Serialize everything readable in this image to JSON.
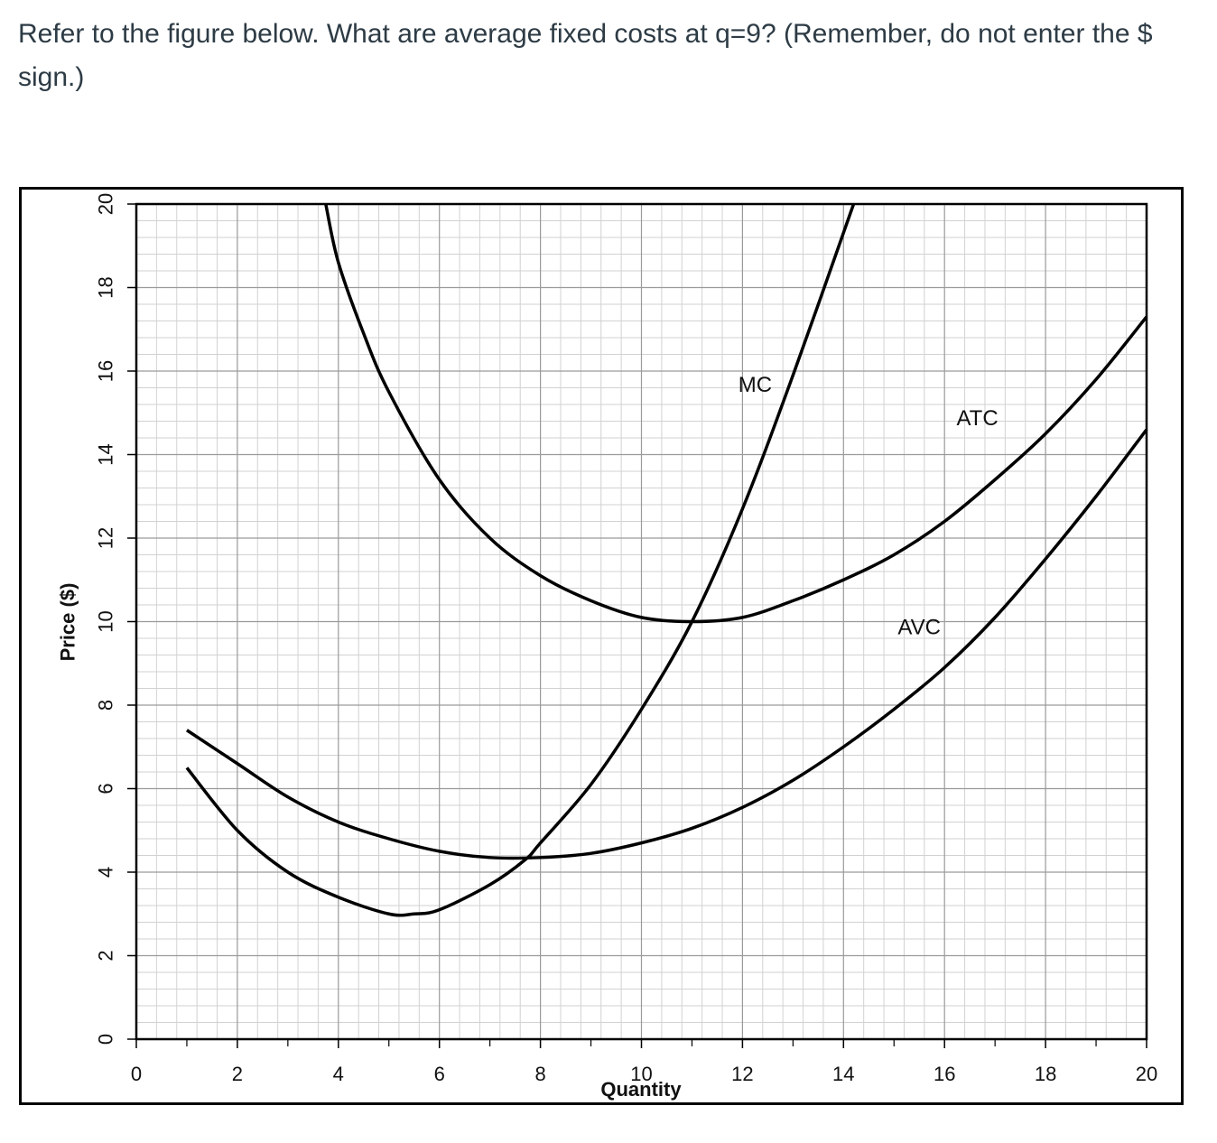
{
  "question": {
    "text": "Refer to the figure below. What are average fixed costs at q=9? (Remember, do not enter the $ sign.)"
  },
  "chart_data": {
    "type": "line",
    "title": "",
    "xlabel": "Quantity",
    "ylabel": "Price ($)",
    "xlim": [
      0,
      20
    ],
    "ylim": [
      0,
      20
    ],
    "x_ticks": [
      0,
      2,
      4,
      6,
      8,
      10,
      12,
      14,
      16,
      18,
      20
    ],
    "y_ticks": [
      0,
      2,
      4,
      6,
      8,
      10,
      12,
      14,
      16,
      18,
      20
    ],
    "grid": true,
    "series": [
      {
        "name": "MC",
        "x": [
          1,
          2,
          3,
          4,
          5,
          5.5,
          6,
          7,
          7.7,
          8,
          9,
          10,
          11,
          12,
          13,
          14.2
        ],
        "y": [
          6.5,
          5.0,
          4.0,
          3.4,
          3.0,
          3.0,
          3.1,
          3.7,
          4.3,
          4.7,
          6.1,
          7.9,
          10.0,
          12.7,
          15.9,
          20.0
        ]
      },
      {
        "name": "ATC",
        "x": [
          3.75,
          4,
          4.5,
          5,
          6,
          7,
          8,
          9,
          10,
          11,
          12,
          13,
          14,
          15,
          16,
          17,
          18,
          19,
          20
        ],
        "y": [
          20.0,
          18.6,
          16.9,
          15.5,
          13.4,
          12.0,
          11.1,
          10.5,
          10.1,
          10.0,
          10.1,
          10.5,
          11.0,
          11.6,
          12.4,
          13.4,
          14.5,
          15.8,
          17.3
        ]
      },
      {
        "name": "AVC",
        "x": [
          1,
          2,
          3,
          4,
          5,
          6,
          7,
          8,
          9,
          10,
          11,
          12,
          13,
          14,
          15,
          16,
          17,
          18,
          19,
          20
        ],
        "y": [
          7.4,
          6.6,
          5.8,
          5.2,
          4.8,
          4.5,
          4.35,
          4.35,
          4.45,
          4.7,
          5.05,
          5.55,
          6.2,
          7.0,
          7.9,
          8.9,
          10.1,
          11.5,
          13.0,
          14.6
        ]
      }
    ],
    "annotations": [
      {
        "text": "MC",
        "x": 12.25,
        "y": 15.5
      },
      {
        "text": "ATC",
        "x": 16.65,
        "y": 14.7
      },
      {
        "text": "AVC",
        "x": 15.5,
        "y": 9.7
      }
    ]
  }
}
